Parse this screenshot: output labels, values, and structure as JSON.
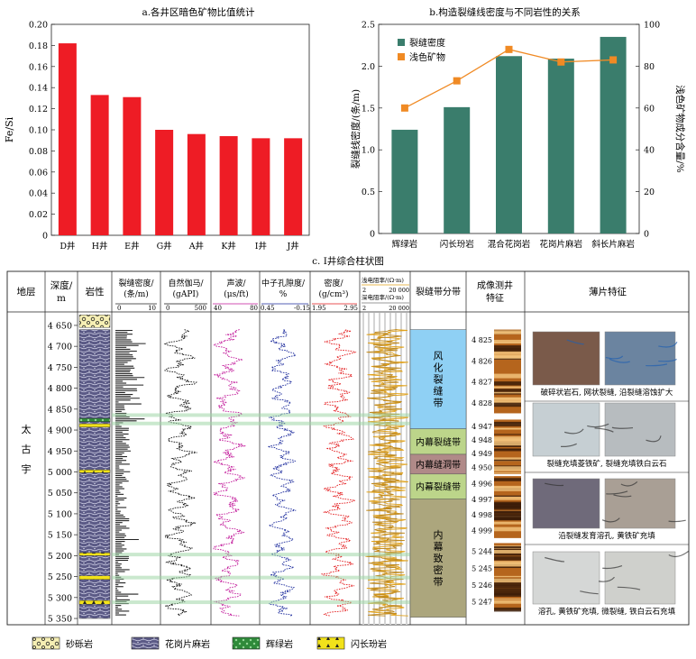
{
  "colors": {
    "red_bar": "#ee1c25",
    "teal_bar": "#3a7d6c",
    "orange_line": "#f08a24",
    "gr": "#111111",
    "ac": "#c2199a",
    "cnl": "#1b2a9c",
    "den": "#e31a1c",
    "res": "#e0a11a",
    "zone_weathered": "#8fd0f4",
    "zone_inner": "#bcd58a",
    "zone_cave": "#b08a88",
    "zone_dense": "#aca67d",
    "granite_gneiss": "#5b5a86",
    "conglomerate": "#f6efb4",
    "diabase": "#2f8a3a",
    "lamprophyre": "#f2e21a"
  },
  "chart_data": [
    {
      "type": "bar",
      "title": "a.各井区暗色矿物比值统计",
      "categories": [
        "D井",
        "H井",
        "E井",
        "G井",
        "A井",
        "K井",
        "I井",
        "J井"
      ],
      "values": [
        0.182,
        0.133,
        0.131,
        0.1,
        0.096,
        0.094,
        0.092,
        0.092
      ],
      "ylabel": "Fe/Si",
      "ylim": [
        0,
        0.2
      ],
      "yticks": [
        "0",
        "0.02",
        "0.04",
        "0.06",
        "0.08",
        "0.10",
        "0.12",
        "0.14",
        "0.16",
        "0.18",
        "0.20"
      ]
    },
    {
      "type": "bar+line",
      "title": "b.构造裂缝线密度与不同岩性的关系",
      "categories": [
        "辉绿岩",
        "闪长玢岩",
        "混合花岗岩",
        "花岗片麻岩",
        "斜长片麻岩"
      ],
      "series": [
        {
          "name": "裂缝密度",
          "type": "bar",
          "axis": "left",
          "values": [
            1.24,
            1.51,
            2.12,
            2.09,
            2.35
          ]
        },
        {
          "name": "浅色矿物",
          "type": "line",
          "axis": "right",
          "values": [
            60,
            73,
            88,
            82,
            83
          ]
        }
      ],
      "ylabel": "裂缝线密度/(条/m)",
      "y2label": "浅色矿物成分含量/%",
      "ylim": [
        0,
        2.5
      ],
      "y2lim": [
        0,
        100
      ],
      "yticks": [
        "0",
        "0.5",
        "1.0",
        "1.5",
        "2.0",
        "2.5"
      ],
      "y2ticks": [
        "0",
        "20",
        "40",
        "60",
        "80",
        "100"
      ],
      "legend_position": "top-left"
    },
    {
      "type": "well-log",
      "title": "c. I井综合柱状图",
      "depth_range": [
        4620,
        5365
      ],
      "depth_ticks": [
        "4 650",
        "4 700",
        "4 750",
        "4 800",
        "4 850",
        "4 900",
        "4 950",
        "5 000",
        "5 050",
        "5 100",
        "5 150",
        "5 200",
        "5 250",
        "5 300",
        "5 350"
      ],
      "headers": {
        "stratum": "地层",
        "depth": [
          "深度/",
          "m"
        ],
        "lithology": "岩性",
        "frac_density": [
          "裂缝密度/",
          "(条/m)"
        ],
        "gr": [
          "自然伽马/",
          "(gAPI)"
        ],
        "ac": [
          "声波/",
          "(μs/ft)"
        ],
        "cnl": [
          "中子孔隙度/",
          "%"
        ],
        "den": [
          "密度/",
          "(g/cm³)"
        ],
        "res_shallow": "浅电阻率/(Ω·m)",
        "res_deep": "深电阻率/(Ω·m)",
        "zones": "裂缝带分带",
        "image_log": [
          "成像测井",
          "特征"
        ],
        "thin_section": "薄片特征"
      },
      "scales": {
        "frac_density": [
          "0",
          "10"
        ],
        "gr": [
          "0",
          "500"
        ],
        "ac": [
          "40",
          "80"
        ],
        "cnl": [
          "0.45",
          "-0.15"
        ],
        "den": [
          "1.95",
          "2.95"
        ],
        "res_shallow": [
          "2",
          "20 000"
        ],
        "res_deep": [
          "2",
          "20 000"
        ]
      },
      "stratum_name": "太古宇",
      "zones": [
        {
          "label": "风化裂缝带",
          "top": 4660,
          "bottom": 4897,
          "color": "zone_weathered"
        },
        {
          "label": "内幕裂缝带",
          "top": 4897,
          "bottom": 4958,
          "color": "zone_inner"
        },
        {
          "label": "内幕缝洞带",
          "top": 4958,
          "bottom": 5005,
          "color": "zone_cave"
        },
        {
          "label": "内幕裂缝带",
          "top": 5005,
          "bottom": 5065,
          "color": "zone_inner"
        },
        {
          "label": "内幕致密带",
          "top": 5065,
          "bottom": 5347,
          "color": "zone_dense"
        }
      ],
      "image_groups": [
        {
          "labels": [
            "4 825",
            "4 826",
            "4 827",
            "4 828"
          ],
          "top": 4660,
          "bottom": 4860
        },
        {
          "labels": [
            "4 947",
            "4 948",
            "4 949",
            "4 950"
          ],
          "top": 4875,
          "bottom": 5005
        },
        {
          "labels": [
            "4 996",
            "4 997",
            "4 998",
            "4 999"
          ],
          "top": 5010,
          "bottom": 5158
        },
        {
          "labels": [
            "5 244",
            "5 245",
            "5 246",
            "5 247"
          ],
          "top": 5170,
          "bottom": 5330
        }
      ],
      "thin_sections": [
        "破碎状岩石, 网状裂缝, 沿裂缝溶蚀扩大",
        "裂缝充填菱铁矿, 裂缝充填铁白云石",
        "沿裂缝发育溶孔, 黄铁矿充填",
        "溶孔, 黄铁矿充填, 微裂缝, 铁白云石充填"
      ],
      "lithology_intervals": [
        {
          "rock": "砂砾岩",
          "top": 4625,
          "bottom": 4655
        },
        {
          "rock": "花岗片麻岩",
          "top": 4660,
          "bottom": 5350
        },
        {
          "rock": "辉绿岩",
          "top": 4872,
          "bottom": 4880
        },
        {
          "rock": "闪长玢岩",
          "top": 4885,
          "bottom": 4893
        },
        {
          "rock": "闪长玢岩",
          "top": 4995,
          "bottom": 5002
        },
        {
          "rock": "闪长玢岩",
          "top": 5193,
          "bottom": 5200
        },
        {
          "rock": "闪长玢岩",
          "top": 5248,
          "bottom": 5257
        },
        {
          "rock": "闪长玢岩",
          "top": 5307,
          "bottom": 5316
        }
      ],
      "highlight_bands": [
        {
          "top": 4860,
          "bottom": 4868
        },
        {
          "top": 4880,
          "bottom": 4887
        },
        {
          "top": 5193,
          "bottom": 5200
        },
        {
          "top": 5248,
          "bottom": 5255
        },
        {
          "top": 5307,
          "bottom": 5314
        }
      ]
    }
  ],
  "legend": [
    {
      "name": "砂砾岩",
      "pattern": "conglomerate"
    },
    {
      "name": "花岗片麻岩",
      "pattern": "granite_gneiss"
    },
    {
      "name": "辉绿岩",
      "pattern": "diabase"
    },
    {
      "name": "闪长玢岩",
      "pattern": "lamprophyre"
    }
  ]
}
